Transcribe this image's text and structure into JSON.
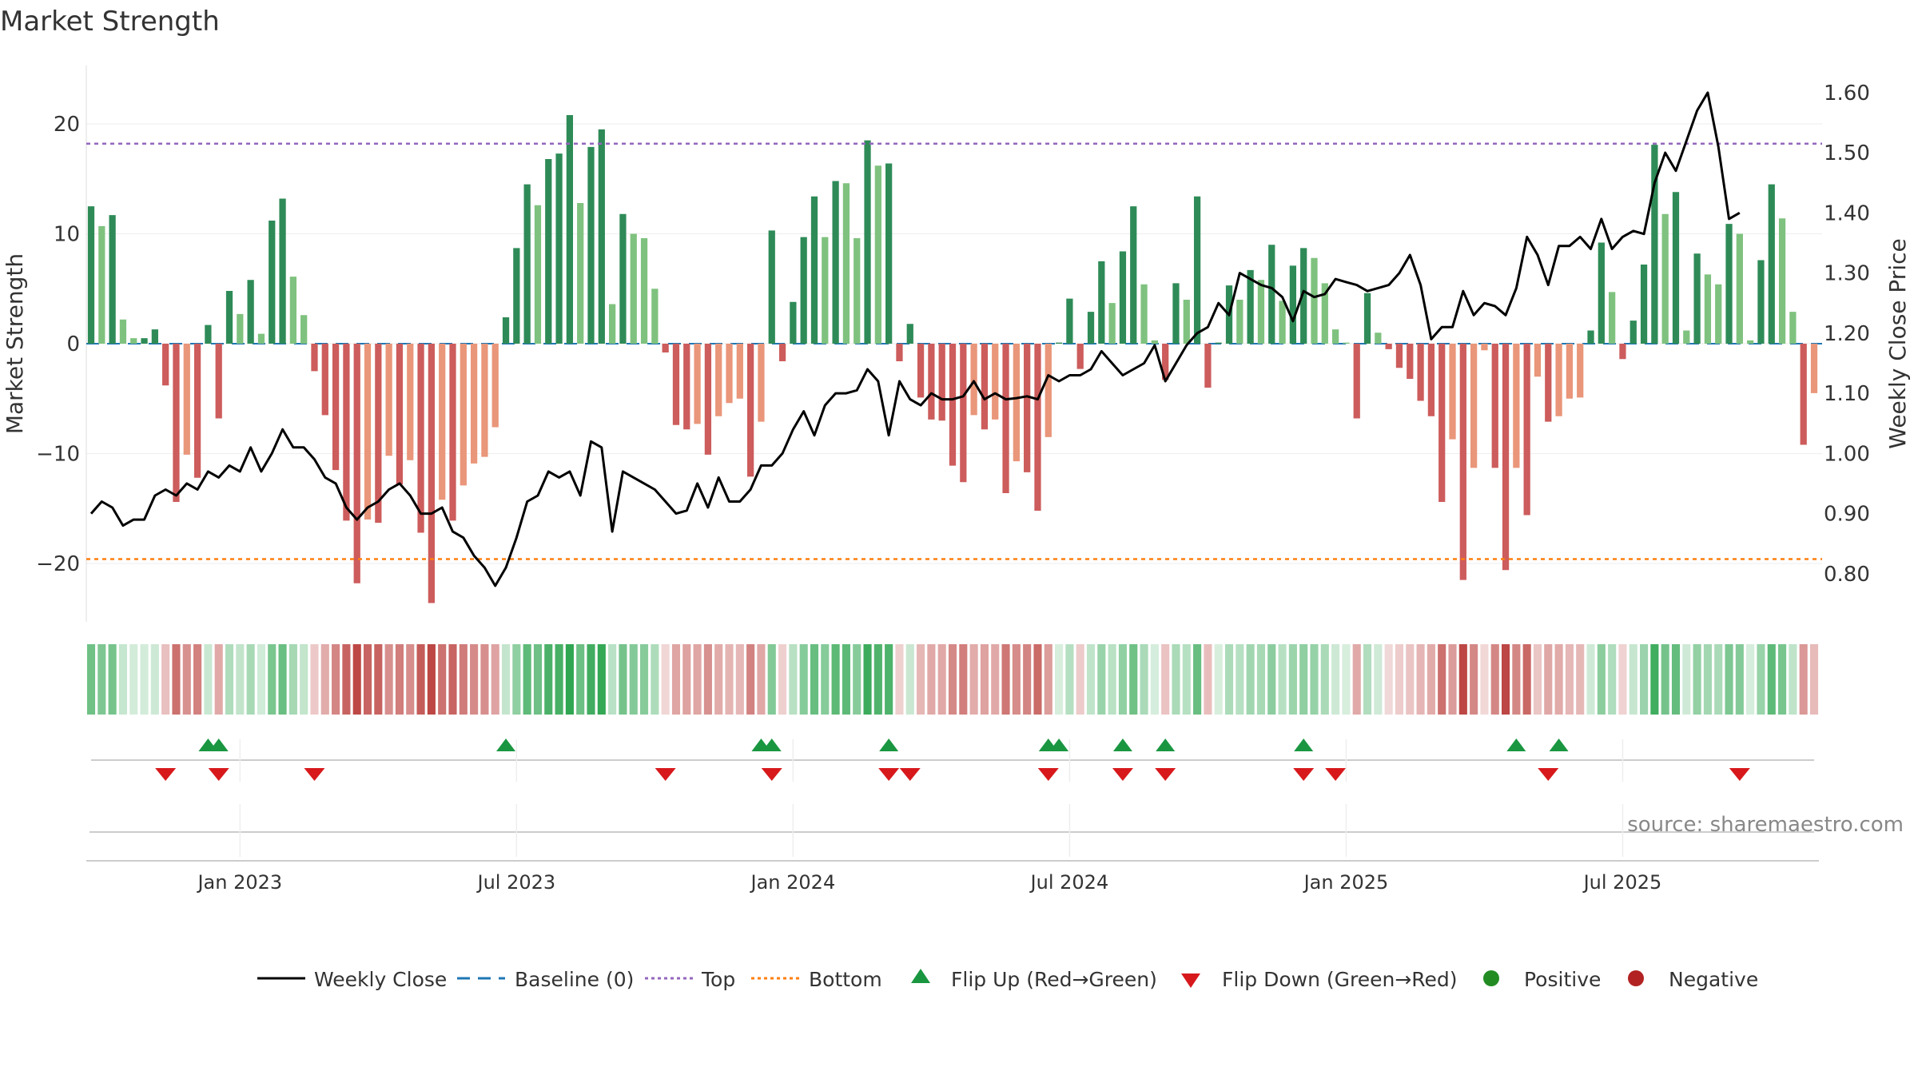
{
  "chart_data": {
    "type": "bar",
    "title": "Market Strength",
    "ylabel_left": "Market Strength",
    "ylabel_right": "Weekly Close Price",
    "source": "source: sharemaestro.com",
    "ylim_left": [
      -25.5,
      25.5
    ],
    "ylim_right": [
      0.72,
      1.645
    ],
    "yticks_left": [
      20,
      10,
      0,
      -10,
      -20
    ],
    "ytick_labels_left": [
      "20",
      "10",
      "0",
      "−10",
      "−20"
    ],
    "yticks_right": [
      1.6,
      1.5,
      1.4,
      1.3,
      1.2,
      1.1,
      1.0,
      0.9,
      0.8
    ],
    "ytick_labels_right": [
      "1.60",
      "1.50",
      "1.40",
      "1.30",
      "1.20",
      "1.10",
      "1.00",
      "0.90",
      "0.80"
    ],
    "x_week_ticks": [
      14,
      40,
      66,
      92,
      118,
      144
    ],
    "x_tick_labels": [
      "Jan 2023",
      "Jul 2023",
      "Jan 2024",
      "Jul 2024",
      "Jan 2025",
      "Jul 2025"
    ],
    "top_line": 18.2,
    "bottom_line": -19.6,
    "strength": [
      12.5,
      10.7,
      11.7,
      2.2,
      0.5,
      0.5,
      1.3,
      -3.8,
      -14.4,
      -10.1,
      -12.2,
      1.7,
      -6.8,
      4.8,
      2.7,
      5.8,
      0.9,
      11.2,
      13.2,
      6.1,
      2.6,
      -2.5,
      -6.5,
      -11.5,
      -16.1,
      -21.8,
      -16.0,
      -16.3,
      -10.2,
      -12.8,
      -10.6,
      -17.2,
      -23.6,
      -14.2,
      -16.1,
      -12.9,
      -10.9,
      -10.3,
      -7.6,
      2.4,
      8.7,
      14.5,
      12.6,
      16.8,
      17.3,
      20.8,
      12.8,
      17.9,
      19.5,
      3.6,
      11.8,
      10.0,
      9.6,
      5.0,
      -0.8,
      -7.4,
      -7.8,
      -7.3,
      -10.1,
      -6.6,
      -5.4,
      -5.0,
      -12.1,
      -7.1,
      10.3,
      -1.6,
      3.8,
      9.7,
      13.4,
      9.7,
      14.8,
      14.6,
      9.6,
      18.5,
      16.2,
      16.4,
      -1.6,
      1.8,
      -4.9,
      -6.9,
      -7.0,
      -11.1,
      -12.6,
      -6.5,
      -7.8,
      -6.9,
      -13.6,
      -10.7,
      -11.7,
      -15.2,
      -8.5,
      0.1,
      4.1,
      -2.3,
      2.9,
      7.5,
      3.7,
      8.4,
      12.5,
      5.4,
      0.3,
      -3.3,
      5.5,
      4.0,
      13.4,
      -4.0,
      0.1,
      5.3,
      4.0,
      6.7,
      5.8,
      9.0,
      3.9,
      7.1,
      8.7,
      7.8,
      5.5,
      1.3,
      0.1,
      -6.8,
      4.6,
      1.0,
      -0.5,
      -2.2,
      -3.2,
      -5.2,
      -6.6,
      -14.4,
      -8.7,
      -21.5,
      -11.3,
      -0.6,
      -11.3,
      -20.6,
      -11.3,
      -15.6,
      -3.0,
      -7.1,
      -6.6,
      -5.0,
      -4.9,
      1.2,
      9.2,
      4.7,
      -1.4,
      2.1,
      7.2,
      18.1,
      11.8,
      13.8,
      1.2,
      8.2,
      6.3,
      5.4,
      10.9,
      10.0,
      0.3,
      7.6,
      14.5,
      11.4,
      2.9,
      -9.2,
      -4.5
    ],
    "weekly_close": [
      0.9,
      0.92,
      0.91,
      0.88,
      0.89,
      0.89,
      0.93,
      0.94,
      0.93,
      0.95,
      0.94,
      0.97,
      0.96,
      0.98,
      0.97,
      1.01,
      0.97,
      1.0,
      1.04,
      1.01,
      1.01,
      0.99,
      0.96,
      0.95,
      0.91,
      0.89,
      0.91,
      0.92,
      0.94,
      0.95,
      0.93,
      0.9,
      0.9,
      0.91,
      0.87,
      0.86,
      0.83,
      0.81,
      0.78,
      0.81,
      0.86,
      0.92,
      0.93,
      0.97,
      0.96,
      0.97,
      0.93,
      1.02,
      1.01,
      0.87,
      0.97,
      0.96,
      0.95,
      0.94,
      0.92,
      0.9,
      0.905,
      0.95,
      0.91,
      0.96,
      0.92,
      0.92,
      0.94,
      0.98,
      0.98,
      1.0,
      1.04,
      1.07,
      1.03,
      1.08,
      1.1,
      1.1,
      1.105,
      1.14,
      1.12,
      1.03,
      1.12,
      1.09,
      1.08,
      1.1,
      1.09,
      1.09,
      1.095,
      1.12,
      1.09,
      1.1,
      1.09,
      1.092,
      1.095,
      1.09,
      1.13,
      1.12,
      1.13,
      1.13,
      1.14,
      1.17,
      1.15,
      1.13,
      1.14,
      1.15,
      1.18,
      1.12,
      1.15,
      1.18,
      1.2,
      1.21,
      1.25,
      1.23,
      1.3,
      1.29,
      1.28,
      1.275,
      1.26,
      1.22,
      1.27,
      1.26,
      1.265,
      1.29,
      1.285,
      1.28,
      1.27,
      1.275,
      1.28,
      1.3,
      1.33,
      1.28,
      1.19,
      1.21,
      1.21,
      1.27,
      1.23,
      1.25,
      1.245,
      1.23,
      1.275,
      1.36,
      1.33,
      1.28,
      1.345,
      1.345,
      1.36,
      1.34,
      1.39,
      1.34,
      1.36,
      1.37,
      1.365,
      1.45,
      1.5,
      1.47,
      1.52,
      1.57,
      1.6,
      1.51,
      1.39,
      1.4
    ],
    "flip_up_weeks": [
      11,
      12,
      39,
      63,
      64,
      75,
      90,
      91,
      97,
      101,
      114,
      134,
      138
    ],
    "flip_down_weeks": [
      7,
      12,
      21,
      54,
      64,
      75,
      77,
      90,
      97,
      101,
      114,
      117,
      137,
      155
    ],
    "legend": [
      "Weekly Close",
      "Baseline (0)",
      "Top",
      "Bottom",
      "Flip Up (Red→Green)",
      "Flip Down (Green→Red)",
      "Positive",
      "Negative"
    ],
    "colors": {
      "pos_dark": "#2e8b57",
      "pos_light": "#7fc27f",
      "neg_dark": "#cd5c5c",
      "neg_light": "#e9967a",
      "close": "#000000",
      "baseline": "#1f77b4",
      "top": "#9467bd",
      "bottom": "#ff7f0e",
      "flip_up": "#1a9641",
      "flip_down": "#d7191c",
      "positive_dot": "#228b22",
      "negative_dot": "#b22222"
    }
  }
}
